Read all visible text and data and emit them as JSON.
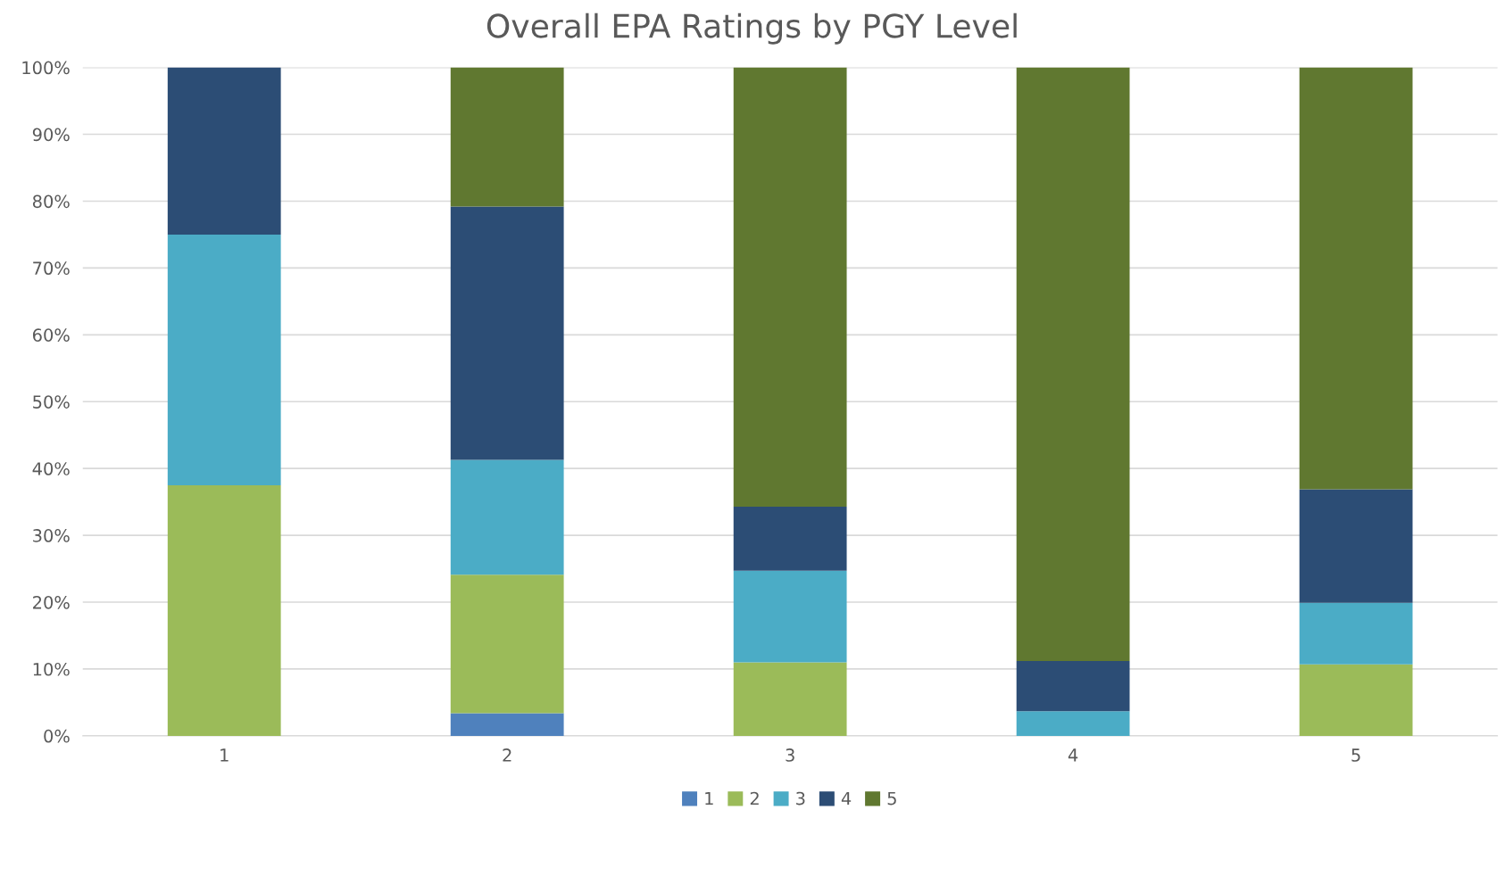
{
  "chart_data": {
    "type": "bar",
    "title": "Overall EPA Ratings by PGY Level",
    "categories": [
      "1",
      "2",
      "3",
      "4",
      "5"
    ],
    "stacked": true,
    "series": [
      {
        "name": "1",
        "color": "#4f81bd",
        "values": [
          0,
          3.4,
          0,
          0,
          0
        ]
      },
      {
        "name": "2",
        "color": "#9bbb59",
        "values": [
          37.5,
          20.7,
          11.0,
          0,
          10.7
        ]
      },
      {
        "name": "3",
        "color": "#4bacc6",
        "values": [
          37.5,
          17.2,
          13.7,
          3.7,
          9.2
        ]
      },
      {
        "name": "4",
        "color": "#2c4d75",
        "values": [
          25.0,
          37.9,
          9.6,
          7.5,
          17.0
        ]
      },
      {
        "name": "5",
        "color": "#607830",
        "values": [
          0,
          20.8,
          65.7,
          88.8,
          63.1
        ]
      }
    ],
    "ylim": [
      0,
      100
    ],
    "yticks": [
      {
        "value": 0,
        "label": "0%"
      },
      {
        "value": 10,
        "label": "10%"
      },
      {
        "value": 20,
        "label": "20%"
      },
      {
        "value": 30,
        "label": "30%"
      },
      {
        "value": 40,
        "label": "40%"
      },
      {
        "value": 50,
        "label": "50%"
      },
      {
        "value": 60,
        "label": "60%"
      },
      {
        "value": 70,
        "label": "70%"
      },
      {
        "value": 80,
        "label": "80%"
      },
      {
        "value": 90,
        "label": "90%"
      },
      {
        "value": 100,
        "label": "100%"
      }
    ],
    "grid": "y",
    "legend": "bottom"
  }
}
